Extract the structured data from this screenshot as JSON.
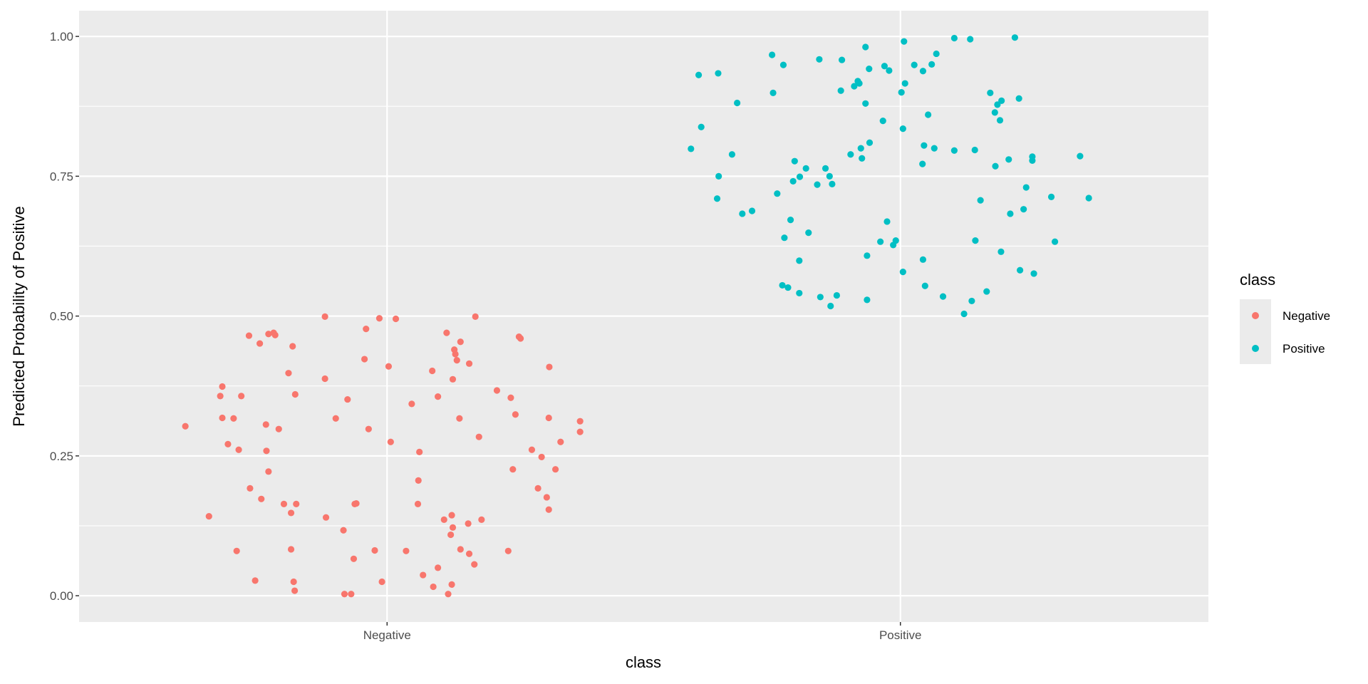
{
  "chart_data": {
    "type": "scatter",
    "title": "",
    "xlabel": "class",
    "ylabel": "Predicted Probability of Positive",
    "x_categories": [
      "Negative",
      "Positive"
    ],
    "xlim": [
      0.4,
      2.6
    ],
    "ylim": [
      -0.047,
      1.046
    ],
    "y_ticks": [
      0,
      0.25,
      0.5,
      0.75,
      1.0
    ],
    "y_tick_labels": [
      "0.00",
      "0.25",
      "0.50",
      "0.75",
      "1.00"
    ],
    "grid": true,
    "legend": {
      "title": "class",
      "placement": "right",
      "entries": [
        "Negative",
        "Positive"
      ]
    },
    "colors": {
      "Negative": "#F8766D",
      "Positive": "#00BFC4",
      "panel": "#EBEBEB",
      "grid": "#FFFFFF"
    },
    "series": [
      {
        "name": "Negative",
        "points": [
          [
            0.607,
            0.303
          ],
          [
            0.653,
            0.142
          ],
          [
            0.679,
            0.374
          ],
          [
            0.675,
            0.357
          ],
          [
            0.679,
            0.318
          ],
          [
            0.701,
            0.317
          ],
          [
            0.716,
            0.357
          ],
          [
            0.69,
            0.271
          ],
          [
            0.711,
            0.261
          ],
          [
            0.731,
            0.465
          ],
          [
            0.752,
            0.451
          ],
          [
            0.769,
            0.468
          ],
          [
            0.782,
            0.466
          ],
          [
            0.779,
            0.47
          ],
          [
            0.816,
            0.446
          ],
          [
            0.808,
            0.398
          ],
          [
            0.821,
            0.36
          ],
          [
            0.764,
            0.306
          ],
          [
            0.789,
            0.298
          ],
          [
            0.765,
            0.259
          ],
          [
            0.769,
            0.222
          ],
          [
            0.733,
            0.192
          ],
          [
            0.755,
            0.173
          ],
          [
            0.799,
            0.164
          ],
          [
            0.823,
            0.164
          ],
          [
            0.813,
            0.148
          ],
          [
            0.707,
            0.08
          ],
          [
            0.813,
            0.083
          ],
          [
            0.743,
            0.027
          ],
          [
            0.818,
            0.025
          ],
          [
            0.82,
            0.009
          ],
          [
            0.879,
            0.499
          ],
          [
            0.879,
            0.388
          ],
          [
            0.9,
            0.317
          ],
          [
            0.923,
            0.351
          ],
          [
            0.959,
            0.477
          ],
          [
            0.956,
            0.423
          ],
          [
            0.985,
            0.496
          ],
          [
            1.017,
            0.495
          ],
          [
            1.003,
            0.41
          ],
          [
            0.964,
            0.298
          ],
          [
            1.007,
            0.275
          ],
          [
            0.881,
            0.14
          ],
          [
            0.915,
            0.117
          ],
          [
            0.937,
            0.164
          ],
          [
            0.94,
            0.165
          ],
          [
            0.935,
            0.066
          ],
          [
            0.976,
            0.081
          ],
          [
            0.99,
            0.025
          ],
          [
            0.917,
            0.003
          ],
          [
            0.93,
            0.003
          ],
          [
            1.048,
            0.343
          ],
          [
            1.088,
            0.402
          ],
          [
            1.099,
            0.356
          ],
          [
            1.116,
            0.47
          ],
          [
            1.131,
            0.44
          ],
          [
            1.133,
            0.432
          ],
          [
            1.143,
            0.454
          ],
          [
            1.128,
            0.387
          ],
          [
            1.136,
            0.421
          ],
          [
            1.16,
            0.415
          ],
          [
            1.172,
            0.499
          ],
          [
            1.141,
            0.317
          ],
          [
            1.179,
            0.284
          ],
          [
            1.063,
            0.257
          ],
          [
            1.061,
            0.206
          ],
          [
            1.06,
            0.164
          ],
          [
            1.037,
            0.08
          ],
          [
            1.07,
            0.037
          ],
          [
            1.09,
            0.016
          ],
          [
            1.099,
            0.05
          ],
          [
            1.119,
            0.003
          ],
          [
            1.126,
            0.02
          ],
          [
            1.111,
            0.136
          ],
          [
            1.126,
            0.144
          ],
          [
            1.128,
            0.122
          ],
          [
            1.124,
            0.109
          ],
          [
            1.158,
            0.129
          ],
          [
            1.184,
            0.136
          ],
          [
            1.143,
            0.083
          ],
          [
            1.16,
            0.075
          ],
          [
            1.17,
            0.056
          ],
          [
            1.214,
            0.367
          ],
          [
            1.241,
            0.354
          ],
          [
            1.25,
            0.324
          ],
          [
            1.257,
            0.463
          ],
          [
            1.26,
            0.46
          ],
          [
            1.316,
            0.409
          ],
          [
            1.315,
            0.318
          ],
          [
            1.376,
            0.312
          ],
          [
            1.376,
            0.293
          ],
          [
            1.338,
            0.275
          ],
          [
            1.282,
            0.261
          ],
          [
            1.301,
            0.248
          ],
          [
            1.245,
            0.226
          ],
          [
            1.328,
            0.226
          ],
          [
            1.294,
            0.192
          ],
          [
            1.311,
            0.176
          ],
          [
            1.315,
            0.154
          ],
          [
            1.236,
            0.08
          ]
        ]
      },
      {
        "name": "Positive",
        "points": [
          [
            1.592,
            0.799
          ],
          [
            1.607,
            0.931
          ],
          [
            1.612,
            0.838
          ],
          [
            1.645,
            0.934
          ],
          [
            1.682,
            0.881
          ],
          [
            1.672,
            0.789
          ],
          [
            1.646,
            0.75
          ],
          [
            1.643,
            0.71
          ],
          [
            1.692,
            0.683
          ],
          [
            1.711,
            0.688
          ],
          [
            1.75,
            0.967
          ],
          [
            1.772,
            0.949
          ],
          [
            1.752,
            0.899
          ],
          [
            1.76,
            0.719
          ],
          [
            1.794,
            0.777
          ],
          [
            1.804,
            0.749
          ],
          [
            1.791,
            0.741
          ],
          [
            1.816,
            0.764
          ],
          [
            1.854,
            0.764
          ],
          [
            1.862,
            0.75
          ],
          [
            1.838,
            0.735
          ],
          [
            1.867,
            0.736
          ],
          [
            1.842,
            0.959
          ],
          [
            1.886,
            0.958
          ],
          [
            1.884,
            0.903
          ],
          [
            1.91,
            0.911
          ],
          [
            1.917,
            0.92
          ],
          [
            1.92,
            0.916
          ],
          [
            1.932,
            0.981
          ],
          [
            1.939,
            0.942
          ],
          [
            1.969,
            0.947
          ],
          [
            1.978,
            0.939
          ],
          [
            1.932,
            0.88
          ],
          [
            1.966,
            0.849
          ],
          [
            1.94,
            0.81
          ],
          [
            1.923,
            0.8
          ],
          [
            1.925,
            0.782
          ],
          [
            1.903,
            0.789
          ],
          [
            2.007,
            0.991
          ],
          [
            2.027,
            0.949
          ],
          [
            2.044,
            0.938
          ],
          [
            2.061,
            0.95
          ],
          [
            2.07,
            0.969
          ],
          [
            2.009,
            0.916
          ],
          [
            2.002,
            0.9
          ],
          [
            2.054,
            0.86
          ],
          [
            2.005,
            0.835
          ],
          [
            2.046,
            0.805
          ],
          [
            2.066,
            0.8
          ],
          [
            2.043,
            0.772
          ],
          [
            2.105,
            0.997
          ],
          [
            2.136,
            0.995
          ],
          [
            2.223,
            0.998
          ],
          [
            2.175,
            0.899
          ],
          [
            2.197,
            0.885
          ],
          [
            2.189,
            0.878
          ],
          [
            2.231,
            0.889
          ],
          [
            2.184,
            0.864
          ],
          [
            2.194,
            0.85
          ],
          [
            2.105,
            0.796
          ],
          [
            2.145,
            0.797
          ],
          [
            2.185,
            0.768
          ],
          [
            2.211,
            0.78
          ],
          [
            2.257,
            0.785
          ],
          [
            2.257,
            0.778
          ],
          [
            2.35,
            0.786
          ],
          [
            2.245,
            0.73
          ],
          [
            2.294,
            0.713
          ],
          [
            2.367,
            0.711
          ],
          [
            2.156,
            0.707
          ],
          [
            2.24,
            0.691
          ],
          [
            2.214,
            0.683
          ],
          [
            1.786,
            0.672
          ],
          [
            1.774,
            0.64
          ],
          [
            1.821,
            0.649
          ],
          [
            1.974,
            0.669
          ],
          [
            1.961,
            0.633
          ],
          [
            1.991,
            0.635
          ],
          [
            1.986,
            0.627
          ],
          [
            1.935,
            0.608
          ],
          [
            1.803,
            0.599
          ],
          [
            2.146,
            0.635
          ],
          [
            2.196,
            0.615
          ],
          [
            2.301,
            0.633
          ],
          [
            2.044,
            0.601
          ],
          [
            2.005,
            0.579
          ],
          [
            2.233,
            0.582
          ],
          [
            2.26,
            0.576
          ],
          [
            1.77,
            0.555
          ],
          [
            1.781,
            0.551
          ],
          [
            1.803,
            0.541
          ],
          [
            1.844,
            0.534
          ],
          [
            1.876,
            0.537
          ],
          [
            1.864,
            0.518
          ],
          [
            1.935,
            0.529
          ],
          [
            2.048,
            0.554
          ],
          [
            2.083,
            0.535
          ],
          [
            2.139,
            0.527
          ],
          [
            2.124,
            0.504
          ],
          [
            2.168,
            0.544
          ]
        ]
      }
    ]
  }
}
